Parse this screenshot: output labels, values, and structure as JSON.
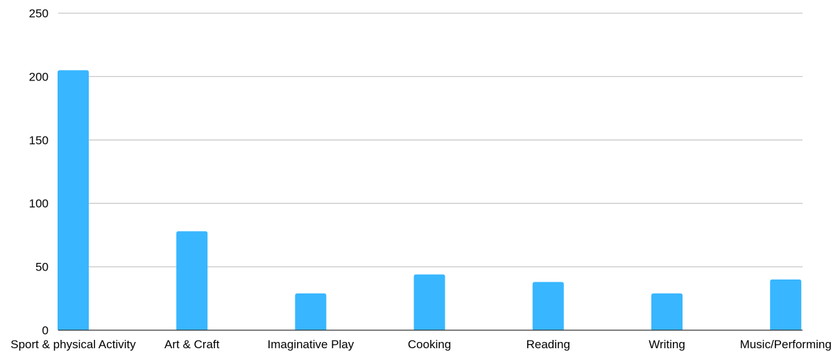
{
  "chart_data": {
    "type": "bar",
    "categories": [
      "Sport & physical Activity",
      "Art & Craft",
      "Imaginative Play",
      "Cooking",
      "Reading",
      "Writing",
      "Music/Performing"
    ],
    "values": [
      205,
      78,
      29,
      44,
      38,
      29,
      40
    ],
    "ylim": [
      0,
      250
    ],
    "yticks": [
      0,
      50,
      100,
      150,
      200,
      250
    ],
    "title": "",
    "xlabel": "",
    "ylabel": "",
    "grid": true,
    "legend": "none",
    "bar_color": "#38b6ff"
  }
}
